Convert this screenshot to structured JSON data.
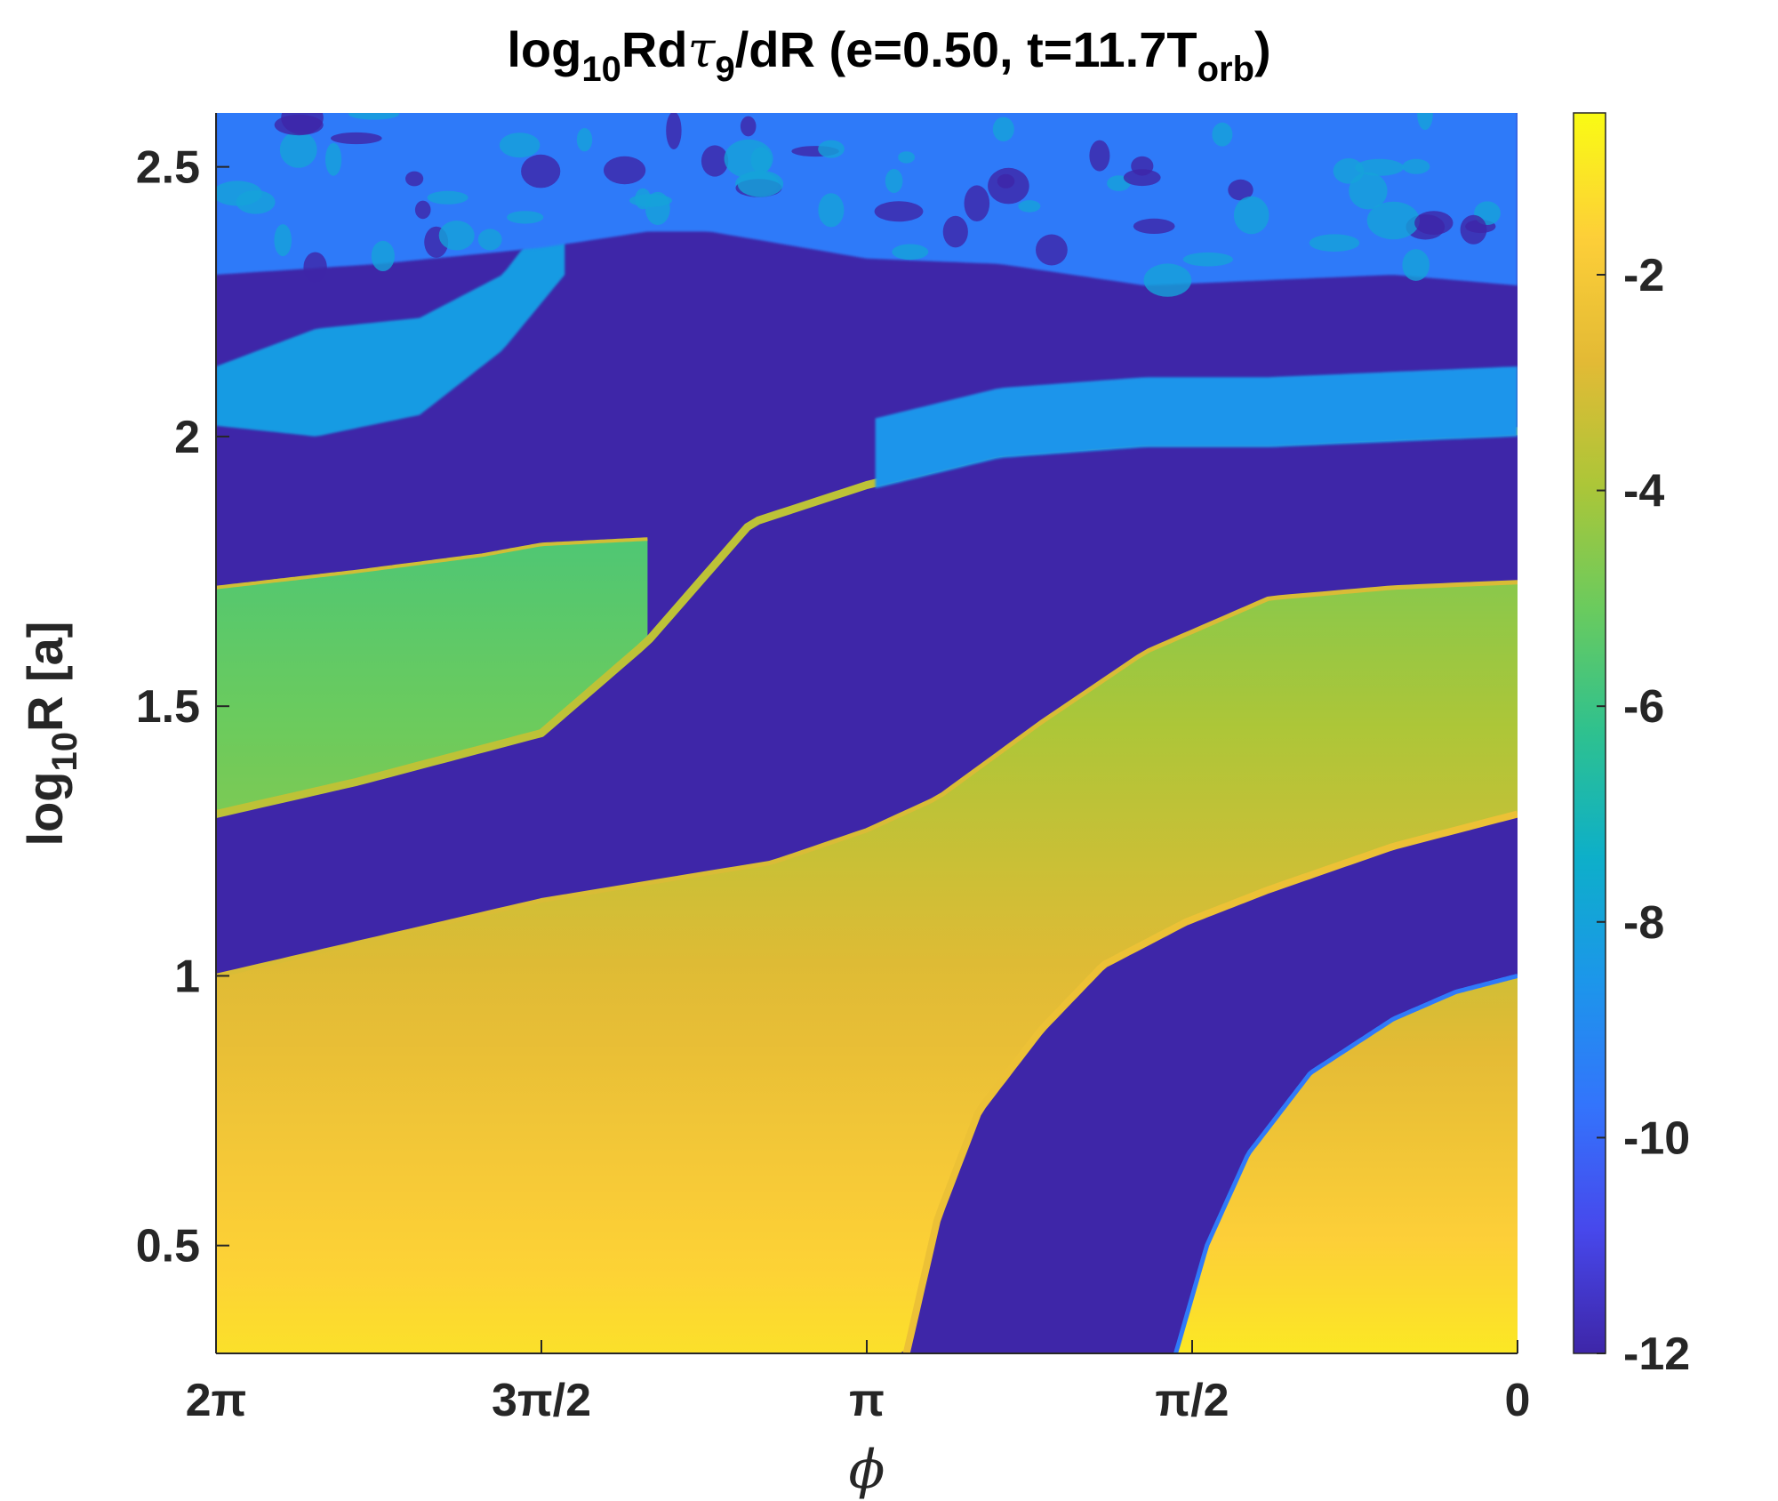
{
  "chart_data": {
    "type": "heatmap",
    "title": {
      "prefix": "log",
      "prefix_sub": "10",
      "mid": "Rd",
      "tau": "τ",
      "tau_sub": "9",
      "after_tau": "/dR (e=0.50, t=11.7T",
      "orb_sub": "orb",
      "close": ")"
    },
    "xlabel": "ϕ",
    "ylabel": {
      "prefix": "log",
      "prefix_sub": "10",
      "rest": "R [a]"
    },
    "xlim": [
      6.2832,
      0
    ],
    "x_reversed": true,
    "ylim": [
      0.3,
      2.6
    ],
    "xticks": [
      {
        "value": 6.2832,
        "label": "2π"
      },
      {
        "value": 4.7124,
        "label": "3π/2"
      },
      {
        "value": 3.1416,
        "label": "π"
      },
      {
        "value": 1.5708,
        "label": "π/2"
      },
      {
        "value": 0,
        "label": "0"
      }
    ],
    "yticks": [
      {
        "value": 0.5,
        "label": "0.5"
      },
      {
        "value": 1,
        "label": "1"
      },
      {
        "value": 1.5,
        "label": "1.5"
      },
      {
        "value": 2,
        "label": "2"
      },
      {
        "value": 2.5,
        "label": "2.5"
      }
    ],
    "colorbar": {
      "colormap": "parula",
      "clim": [
        -12,
        -0.5
      ],
      "ticks": [
        {
          "value": -12,
          "label": "-12"
        },
        {
          "value": -10,
          "label": "-10"
        },
        {
          "value": -8,
          "label": "-8"
        },
        {
          "value": -6,
          "label": "-6"
        },
        {
          "value": -4,
          "label": "-4"
        },
        {
          "value": -2,
          "label": "-2"
        }
      ]
    },
    "grid": false,
    "features": {
      "floor_value": -12,
      "spiral_arm_1_inner_edge": {
        "phi": [
          6.2832,
          4.7124,
          3.6,
          3.1416,
          2.8,
          2.3,
          1.8,
          1.2,
          0.6,
          0
        ],
        "log10R": [
          1.0,
          1.14,
          1.21,
          1.27,
          1.33,
          1.47,
          1.6,
          1.7,
          1.72,
          1.73
        ]
      },
      "spiral_arm_1_outer_edge": {
        "phi": [
          6.2832,
          5.6,
          4.7124,
          4.2,
          3.7,
          3.1416,
          2.5,
          1.8,
          1.2,
          0
        ],
        "log10R": [
          1.3,
          1.36,
          1.45,
          1.62,
          1.84,
          1.91,
          1.97,
          1.99,
          1.99,
          2.01
        ]
      },
      "spiral_arm_2_outer_edge": {
        "phi": [
          2.95,
          2.8,
          2.6,
          2.3,
          2.0,
          1.6,
          1.2,
          0.6,
          0
        ],
        "log10R": [
          0.3,
          0.55,
          0.75,
          0.9,
          1.02,
          1.1,
          1.16,
          1.24,
          1.3
        ]
      },
      "spiral_arm_2_inner_edge": {
        "phi": [
          1.65,
          1.5,
          1.3,
          1.0,
          0.6,
          0.3,
          0
        ],
        "log10R": [
          0.3,
          0.5,
          0.67,
          0.82,
          0.92,
          0.97,
          1.0
        ]
      },
      "arm_0_lower_edge": {
        "phi": [
          6.2832,
          5.6,
          5.0,
          4.7124,
          4.2
        ],
        "log10R": [
          1.72,
          1.75,
          1.78,
          1.8,
          1.81
        ]
      },
      "outer_band_lower_edge": {
        "phi": [
          6.2832,
          5.8,
          5.3,
          4.9,
          4.6
        ],
        "log10R": [
          2.02,
          2.0,
          2.04,
          2.16,
          2.3
        ]
      },
      "outer_band_upper_edge": {
        "phi": [
          6.2832,
          5.8,
          5.3,
          4.9,
          4.7
        ],
        "log10R": [
          2.13,
          2.2,
          2.22,
          2.3,
          2.4
        ]
      },
      "turbulent_lower_edge": {
        "phi": [
          6.2832,
          5.5,
          4.7124,
          4.2,
          3.9,
          3.1416,
          2.5,
          1.8,
          1.2,
          0.6,
          0
        ],
        "log10R": [
          2.3,
          2.32,
          2.35,
          2.38,
          2.38,
          2.33,
          2.32,
          2.28,
          2.29,
          2.3,
          2.28
        ]
      },
      "turbulent_upper_value": -9.5,
      "outer_band_value": -8.3
    }
  }
}
